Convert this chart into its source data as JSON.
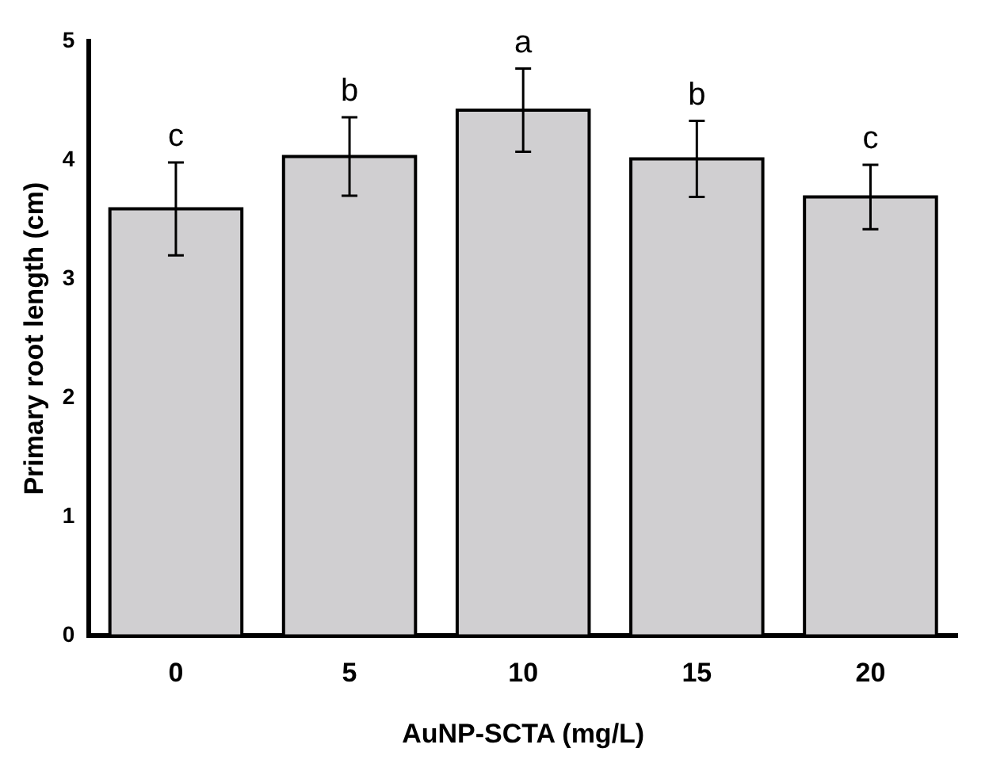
{
  "chart_data": {
    "type": "bar",
    "xlabel": "AuNP-SCTA (mg/L)",
    "ylabel": "Primary root length (cm)",
    "categories": [
      "0",
      "5",
      "10",
      "15",
      "20"
    ],
    "values": [
      3.59,
      4.03,
      4.42,
      4.01,
      3.69
    ],
    "errors": [
      0.39,
      0.33,
      0.35,
      0.32,
      0.27
    ],
    "color": "#d0cfd1",
    "ylim": [
      0,
      5
    ],
    "yticks": [
      0,
      1,
      2,
      3,
      4,
      5
    ],
    "grid": false,
    "legend": false,
    "annotations": [
      "c",
      "b",
      "a",
      "b",
      "c"
    ]
  }
}
